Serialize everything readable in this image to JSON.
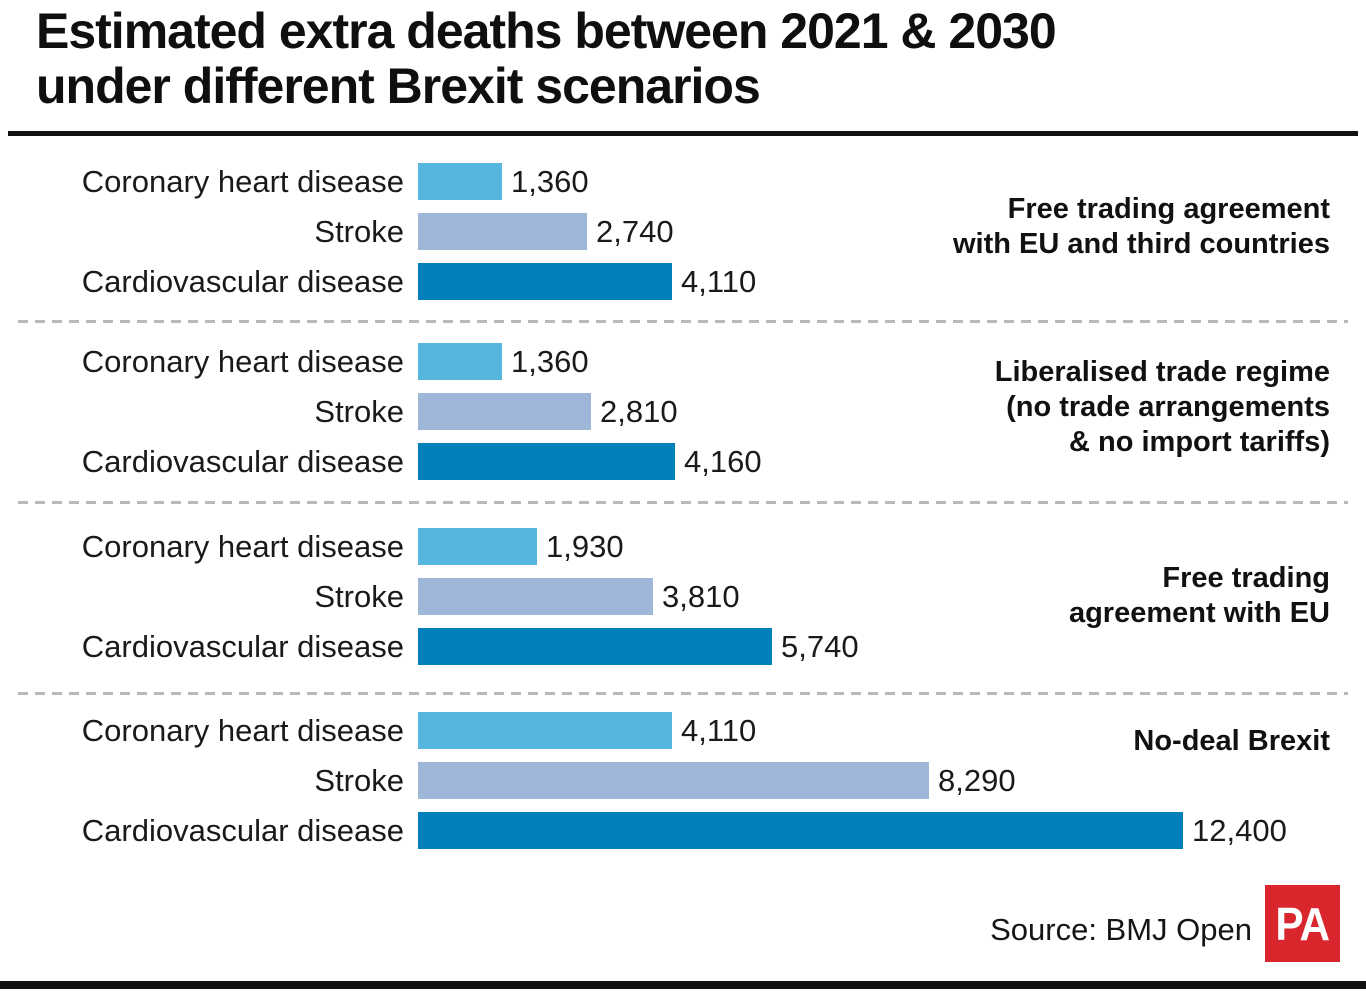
{
  "title": {
    "line1": "Estimated extra deaths between 2021 & 2030",
    "line2": "under different Brexit scenarios"
  },
  "footer": {
    "source_label": "Source: BMJ Open",
    "logo_text": "PA"
  },
  "colors": {
    "coronary_bar": "#57b6de",
    "stroke_bar": "#9eb6d8",
    "cardiovascular_bar": "#0081ba",
    "logo_red": "#d8262c",
    "text": "#1a1a1a",
    "dashed_line": "#b8b8b8"
  },
  "chart_data": {
    "type": "bar",
    "orientation": "horizontal",
    "title": "Estimated extra deaths between 2021 & 2030 under different Brexit scenarios",
    "xlabel": "",
    "ylabel": "",
    "xlim": [
      0,
      12400
    ],
    "grid": false,
    "legend_position": "none",
    "categories": [
      "Coronary heart disease",
      "Stroke",
      "Cardiovascular disease"
    ],
    "groups": [
      {
        "scenario": "Free trading agreement with EU and third countries",
        "scenario_lines": [
          "Free trading agreement",
          "with EU and third countries"
        ],
        "values": [
          1360,
          2740,
          4110
        ],
        "value_labels": [
          "1,360",
          "2,740",
          "4,110"
        ]
      },
      {
        "scenario": "Liberalised trade regime (no trade arrangements & no import tariffs)",
        "scenario_lines": [
          "Liberalised trade regime",
          "(no trade arrangements",
          "& no import tariffs)"
        ],
        "values": [
          1360,
          2810,
          4160
        ],
        "value_labels": [
          "1,360",
          "2,810",
          "4,160"
        ]
      },
      {
        "scenario": "Free trading agreement with EU",
        "scenario_lines": [
          "Free trading",
          "agreement with EU"
        ],
        "values": [
          1930,
          3810,
          5740
        ],
        "value_labels": [
          "1,930",
          "3,810",
          "5,740"
        ]
      },
      {
        "scenario": "No-deal Brexit",
        "scenario_lines": [
          "No-deal Brexit"
        ],
        "values": [
          4110,
          8290,
          12400
        ],
        "value_labels": [
          "4,110",
          "8,290",
          "12,400"
        ]
      }
    ]
  }
}
